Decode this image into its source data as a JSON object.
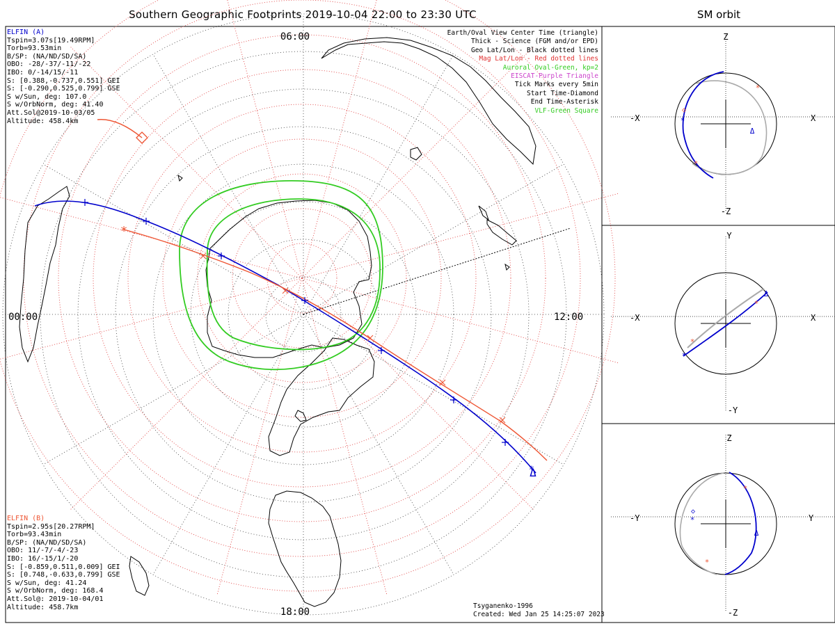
{
  "title": "Southern Geographic Footprints 2019-10-04 22:00 to 23:30 UTC",
  "orbit_panel_title": "SM orbit",
  "colors": {
    "elfin_a": "#0000cc",
    "elfin_b": "#ee5533",
    "aurora": "#33cc22",
    "mag_grid": "#e04040",
    "geo_grid": "#333333",
    "orbit_grey": "#aaaaaa"
  },
  "map": {
    "local_time_labels": {
      "top": "06:00",
      "left": "00:00",
      "right": "12:00",
      "bottom": "18:00"
    }
  },
  "elfin_a": {
    "lines": [
      "ELFIN (A)",
      "Tspin=3.07s[19.49RPM]",
      "Torb=93.53min",
      "B/SP: (NA/ND/SD/SA)",
      "OBO: -28/-37/-11/-22",
      "IBO: 0/-14/15/-11",
      "S: [0.388,-0.737,0.551] GEI",
      "S: [-0.290,0.525,0.799] GSE",
      "S w/Sun, deg: 107.0",
      "S w/OrbNorm, deg: 41.40",
      "Att.Sol@2019-10-03/05",
      "Altitude: 458.4km"
    ]
  },
  "elfin_b": {
    "lines": [
      "ELFIN (B)",
      "Tspin=2.95s[20.27RPM]",
      "Torb=93.43min",
      "B/SP: (NA/ND/SD/SA)",
      "OBO: 11/-7/-4/-23",
      "IBO: 16/-15/1/-20",
      "S: [-0.859,0.511,0.009] GEI",
      "S: [0.748,-0.633,0.799] GSE",
      "S w/Sun, deg: 41.24",
      "S w/OrbNorm, deg: 168.4",
      "Att.Sol@: 2019-10-04/01",
      "Altitude: 458.7km"
    ]
  },
  "legend": [
    {
      "text": "Earth/Oval View Center Time (triangle)",
      "color": "#000000"
    },
    {
      "text": "Thick - Science (FGM and/or EPD)",
      "color": "#000000"
    },
    {
      "text": "Geo Lat/Lon - Black dotted lines",
      "color": "#000000"
    },
    {
      "text": "Mag Lat/Lon - Red dotted lines",
      "color": "#e03030"
    },
    {
      "text": "Auroral Oval-Green, kp=2",
      "color": "#33cc22"
    },
    {
      "text": "EISCAT-Purple Triangle",
      "color": "#cc44cc"
    },
    {
      "text": "Tick Marks every 5min",
      "color": "#000000"
    },
    {
      "text": "Start Time-Diamond",
      "color": "#000000"
    },
    {
      "text": "End Time-Asterisk",
      "color": "#000000"
    },
    {
      "text": "VLF-Green Square",
      "color": "#33cc22"
    }
  ],
  "footer": {
    "model": "Tsyganenko-1996",
    "created": "Created: Wed Jan 25 14:25:07 2023"
  },
  "orbit_panels": [
    {
      "h_left": "-X",
      "h_right": "X",
      "v_top": "Z",
      "v_bottom": "-Z"
    },
    {
      "h_left": "-X",
      "h_right": "X",
      "v_top": "Y",
      "v_bottom": "-Y"
    },
    {
      "h_left": "-Y",
      "h_right": "Y",
      "v_top": "Z",
      "v_bottom": "-Z"
    }
  ],
  "chart_data": {
    "type": "scatter",
    "title": "Southern Geographic Footprints 2019-10-04 22:00 to 23:30 UTC",
    "projection": "polar, southern hemisphere",
    "series": [
      {
        "name": "ELFIN (A)",
        "marker_every": "5min",
        "start_marker": "diamond",
        "end_marker": "asterisk",
        "center_time_marker": "triangle"
      },
      {
        "name": "ELFIN (B)",
        "marker_every": "5min",
        "start_marker": "diamond",
        "end_marker": "asterisk"
      }
    ],
    "auroral_oval_kp": 2,
    "orbit_views": [
      "X-Z",
      "X-Y",
      "Y-Z"
    ]
  }
}
